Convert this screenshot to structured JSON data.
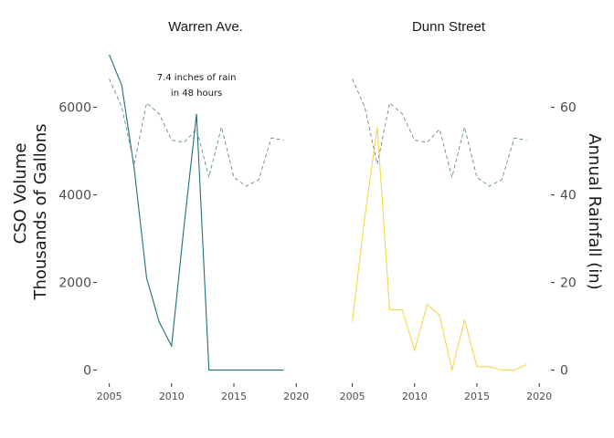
{
  "chart_data": {
    "type": "line",
    "panels": [
      "Warren Ave.",
      "Dunn Street"
    ],
    "x_ticks": [
      2005,
      2010,
      2015,
      2020
    ],
    "x_range": [
      2004,
      2020.5
    ],
    "y_left": {
      "label_lines": [
        "CSO Volume",
        "Thousands of Gallons"
      ],
      "ticks": [
        0,
        2000,
        4000,
        6000
      ],
      "range": [
        -300,
        7200
      ]
    },
    "y_right": {
      "label": "Annual Rainfall (in)",
      "ticks": [
        0,
        20,
        40,
        60
      ],
      "range": [
        -3,
        72
      ]
    },
    "annotation": {
      "panel": 0,
      "x": 2012,
      "lines": [
        "7.4 inches of rain",
        "in 48 hours"
      ]
    },
    "colors": {
      "warren": "#1f6f7a",
      "dunn": "#f5d54a",
      "rainfall": "#4a7f8c"
    },
    "series": [
      {
        "panel": 0,
        "kind": "cso",
        "x": [
          2005,
          2006,
          2007,
          2008,
          2009,
          2010,
          2011,
          2012,
          2013,
          2014,
          2015,
          2016,
          2017,
          2018,
          2019
        ],
        "values": [
          7200,
          6500,
          4600,
          2100,
          1100,
          550,
          3300,
          5850,
          0,
          0,
          0,
          0,
          0,
          0,
          0
        ]
      },
      {
        "panel": 1,
        "kind": "cso",
        "x": [
          2005,
          2006,
          2007,
          2008,
          2009,
          2010,
          2011,
          2012,
          2013,
          2014,
          2015,
          2016,
          2017,
          2018,
          2019
        ],
        "values": [
          1100,
          3500,
          5550,
          1380,
          1380,
          450,
          1500,
          1250,
          0,
          1150,
          80,
          80,
          0,
          0,
          130
        ]
      },
      {
        "panel": 0,
        "kind": "rainfall",
        "x": [
          2005,
          2006,
          2007,
          2008,
          2009,
          2010,
          2011,
          2012,
          2013,
          2014,
          2015,
          2016,
          2017,
          2018,
          2019
        ],
        "values": [
          66.5,
          60,
          47,
          61,
          58.5,
          52.5,
          52,
          55,
          44,
          55.5,
          44,
          42,
          43.5,
          53,
          52.5
        ]
      },
      {
        "panel": 1,
        "kind": "rainfall",
        "x": [
          2005,
          2006,
          2007,
          2008,
          2009,
          2010,
          2011,
          2012,
          2013,
          2014,
          2015,
          2016,
          2017,
          2018,
          2019
        ],
        "values": [
          66.5,
          60,
          47,
          61,
          58.5,
          52.5,
          52,
          55,
          44,
          55.5,
          44,
          42,
          43.5,
          53,
          52.5
        ]
      }
    ]
  }
}
